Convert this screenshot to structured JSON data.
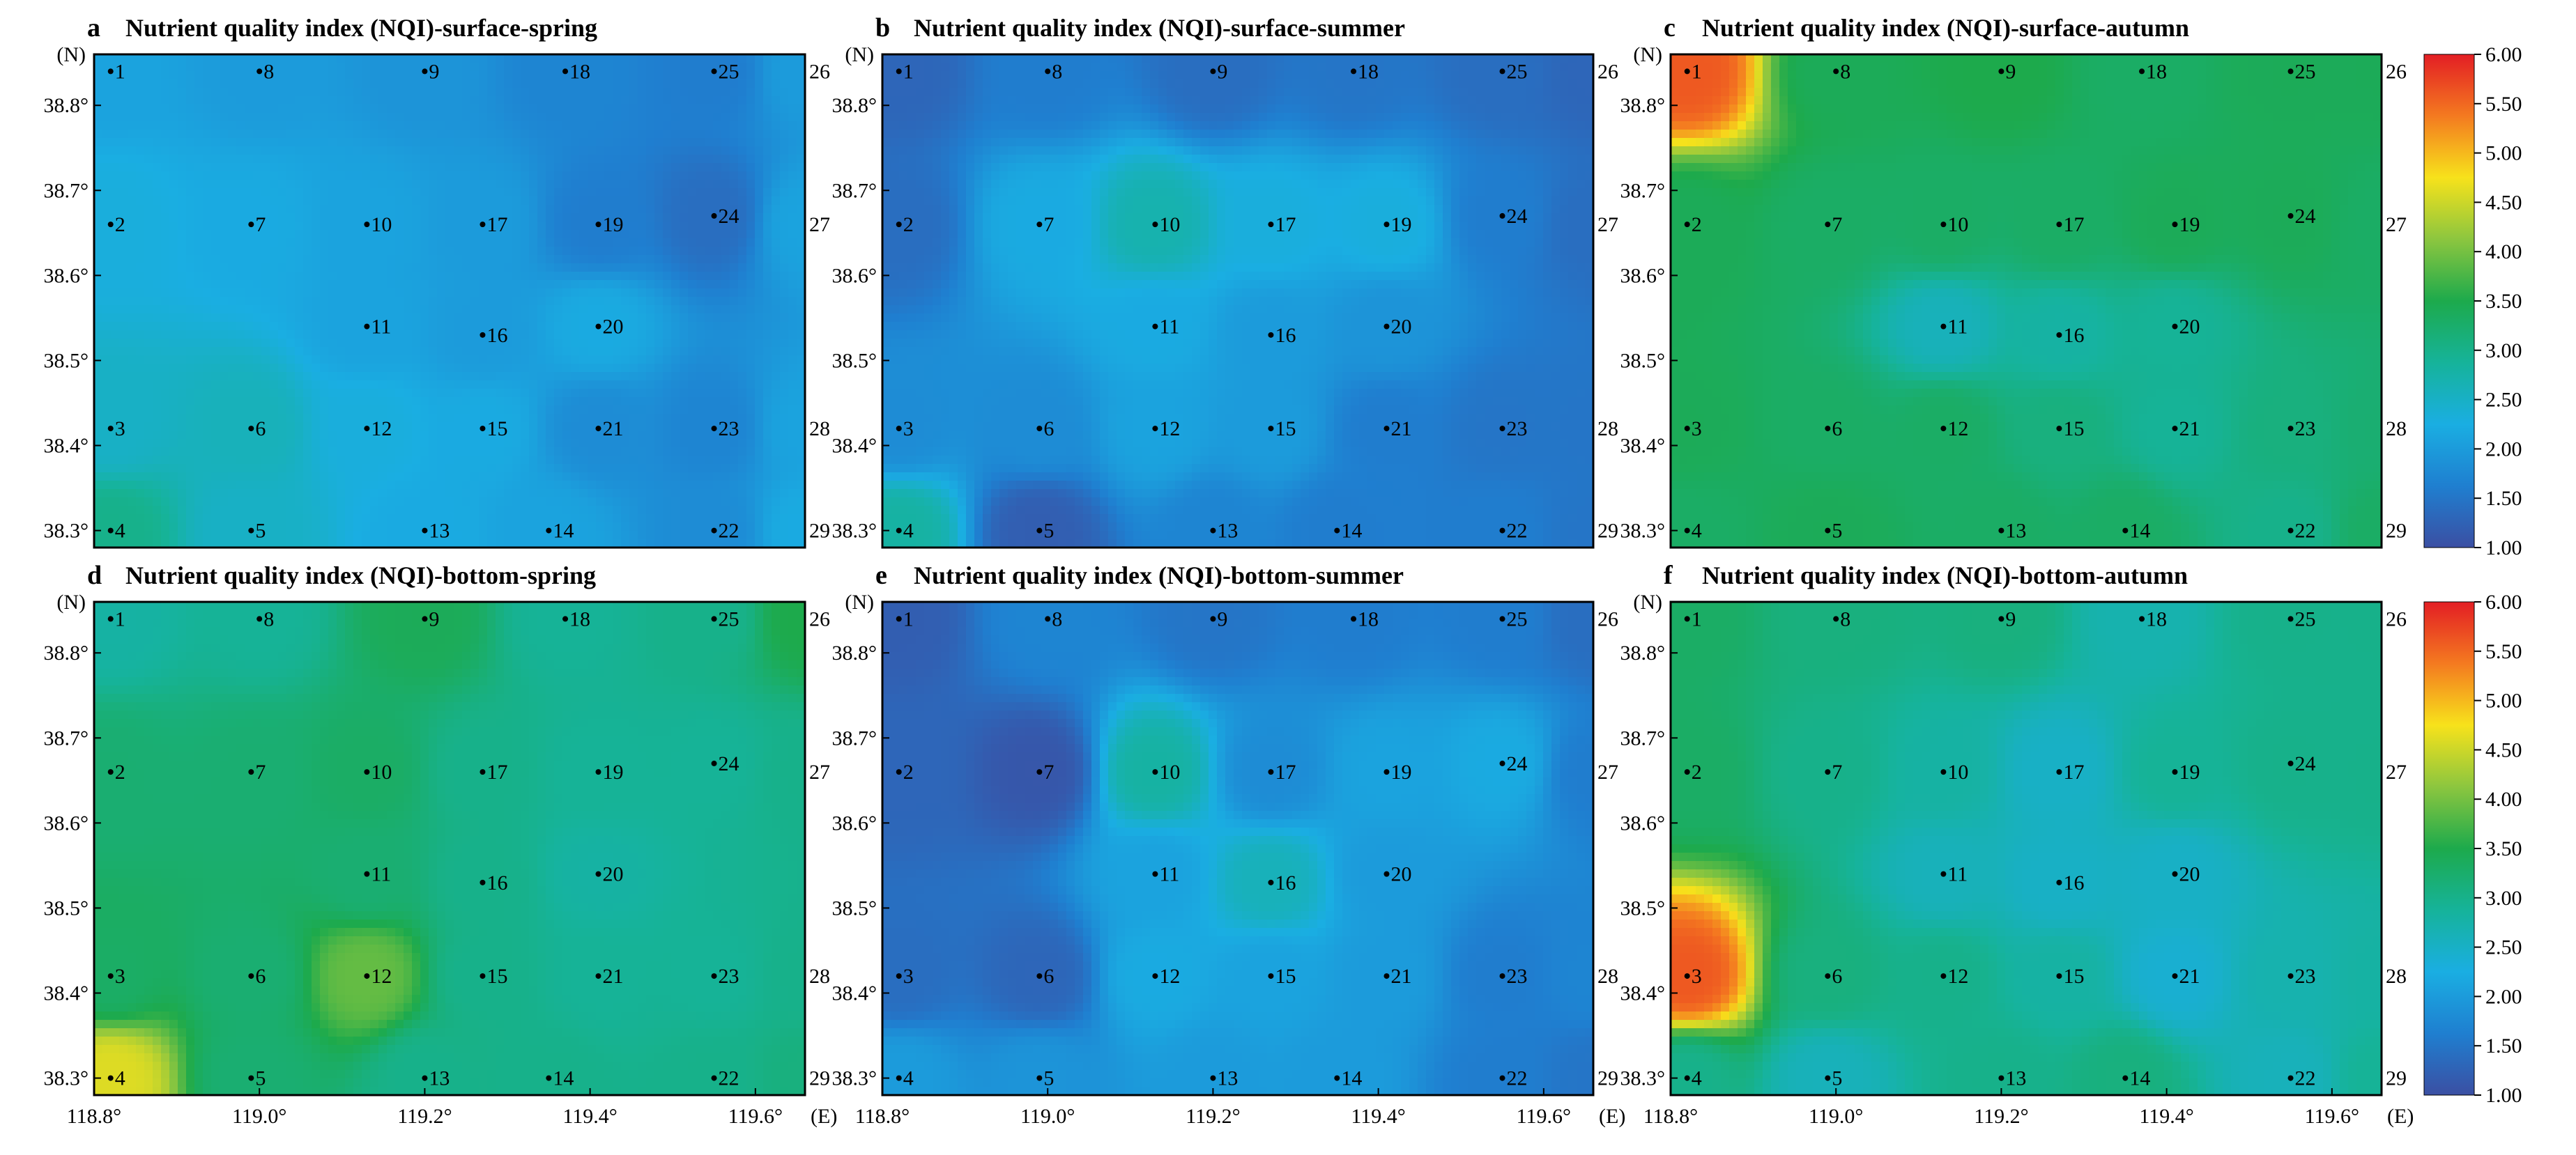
{
  "figure": {
    "lat_unit": "(N)",
    "lon_unit": "(E)",
    "lat_ticks": [
      "38.3°",
      "38.4°",
      "38.5°",
      "38.6°",
      "38.7°",
      "38.8°"
    ],
    "lon_ticks": [
      "118.8°",
      "119.0°",
      "119.2°",
      "119.4°",
      "119.6°"
    ],
    "colorbar_ticks": [
      "1.00",
      "1.50",
      "2.00",
      "2.50",
      "3.00",
      "3.50",
      "4.00",
      "4.50",
      "5.00",
      "5.50",
      "6.00"
    ],
    "colors": {
      "c1": "#3b4fa3",
      "c2": "#1f7fd0",
      "c3": "#1aaee2",
      "c4": "#16b39a",
      "c5": "#1daa4c",
      "c6": "#8cc63f",
      "c7": "#f7e21b",
      "c8": "#f47a20",
      "c9": "#e31e24"
    }
  },
  "stations": [
    {
      "id": "1",
      "lon": 118.82,
      "lat": 38.84
    },
    {
      "id": "8",
      "lon": 119.0,
      "lat": 38.84
    },
    {
      "id": "9",
      "lon": 119.2,
      "lat": 38.84
    },
    {
      "id": "18",
      "lon": 119.37,
      "lat": 38.84
    },
    {
      "id": "25",
      "lon": 119.55,
      "lat": 38.84
    },
    {
      "id": "26",
      "lon": 119.66,
      "lat": 38.84
    },
    {
      "id": "2",
      "lon": 118.82,
      "lat": 38.66
    },
    {
      "id": "7",
      "lon": 118.99,
      "lat": 38.66
    },
    {
      "id": "10",
      "lon": 119.13,
      "lat": 38.66
    },
    {
      "id": "17",
      "lon": 119.27,
      "lat": 38.66
    },
    {
      "id": "19",
      "lon": 119.41,
      "lat": 38.66
    },
    {
      "id": "24",
      "lon": 119.55,
      "lat": 38.67
    },
    {
      "id": "27",
      "lon": 119.66,
      "lat": 38.66
    },
    {
      "id": "11",
      "lon": 119.13,
      "lat": 38.54
    },
    {
      "id": "16",
      "lon": 119.27,
      "lat": 38.53
    },
    {
      "id": "20",
      "lon": 119.41,
      "lat": 38.54
    },
    {
      "id": "3",
      "lon": 118.82,
      "lat": 38.42
    },
    {
      "id": "6",
      "lon": 118.99,
      "lat": 38.42
    },
    {
      "id": "12",
      "lon": 119.13,
      "lat": 38.42
    },
    {
      "id": "15",
      "lon": 119.27,
      "lat": 38.42
    },
    {
      "id": "21",
      "lon": 119.41,
      "lat": 38.42
    },
    {
      "id": "23",
      "lon": 119.55,
      "lat": 38.42
    },
    {
      "id": "28",
      "lon": 119.66,
      "lat": 38.42
    },
    {
      "id": "4",
      "lon": 118.82,
      "lat": 38.3
    },
    {
      "id": "5",
      "lon": 118.99,
      "lat": 38.3
    },
    {
      "id": "13",
      "lon": 119.2,
      "lat": 38.3
    },
    {
      "id": "14",
      "lon": 119.35,
      "lat": 38.3
    },
    {
      "id": "22",
      "lon": 119.55,
      "lat": 38.3
    },
    {
      "id": "29",
      "lon": 119.66,
      "lat": 38.3
    }
  ],
  "chart_data": [
    {
      "type": "heatmap",
      "panel": "a",
      "title": "Nutrient quality index (NQI)-surface-spring",
      "xlabel": "",
      "ylabel": "",
      "xlim": [
        118.8,
        119.66
      ],
      "ylim": [
        38.28,
        38.86
      ],
      "colorbar": {
        "min": 1.0,
        "max": 6.0
      },
      "values": {
        "1": 2.1,
        "2": 2.3,
        "3": 2.5,
        "4": 3.0,
        "5": 2.5,
        "6": 2.6,
        "7": 2.2,
        "8": 2.0,
        "9": 1.9,
        "10": 2.1,
        "11": 2.1,
        "12": 2.3,
        "13": 2.2,
        "14": 2.1,
        "15": 2.2,
        "16": 2.0,
        "17": 2.0,
        "18": 1.7,
        "19": 1.6,
        "20": 2.2,
        "21": 1.8,
        "22": 1.8,
        "23": 1.7,
        "24": 1.4,
        "25": 1.6,
        "26": 2.0,
        "27": 2.1,
        "28": 2.1,
        "29": 2.2
      }
    },
    {
      "type": "heatmap",
      "panel": "b",
      "title": "Nutrient quality index (NQI)-surface-summer",
      "xlabel": "",
      "ylabel": "",
      "xlim": [
        118.8,
        119.66
      ],
      "ylim": [
        38.28,
        38.86
      ],
      "colorbar": {
        "min": 1.0,
        "max": 6.0
      },
      "values": {
        "1": 1.3,
        "2": 1.4,
        "3": 1.8,
        "4": 2.8,
        "5": 1.2,
        "6": 1.8,
        "7": 2.2,
        "8": 1.6,
        "9": 1.4,
        "10": 2.7,
        "11": 2.2,
        "12": 2.1,
        "13": 1.7,
        "14": 1.6,
        "15": 2.0,
        "16": 2.0,
        "17": 2.3,
        "18": 1.5,
        "19": 2.3,
        "20": 1.9,
        "21": 1.6,
        "22": 1.6,
        "23": 1.5,
        "24": 1.6,
        "25": 1.4,
        "26": 1.3,
        "27": 1.4,
        "28": 1.5,
        "29": 1.5
      }
    },
    {
      "type": "heatmap",
      "panel": "c",
      "title": "Nutrient quality index (NQI)-surface-autumn",
      "xlabel": "",
      "ylabel": "",
      "xlim": [
        118.8,
        119.66
      ],
      "ylim": [
        38.28,
        38.86
      ],
      "colorbar": {
        "min": 1.0,
        "max": 6.0
      },
      "values": {
        "1": 5.6,
        "2": 3.4,
        "3": 3.4,
        "4": 3.3,
        "5": 3.4,
        "6": 3.3,
        "7": 3.3,
        "8": 3.4,
        "9": 3.5,
        "10": 3.3,
        "11": 2.6,
        "12": 3.3,
        "13": 3.3,
        "14": 3.3,
        "15": 3.1,
        "16": 2.8,
        "17": 3.3,
        "18": 3.3,
        "19": 3.4,
        "20": 2.9,
        "21": 2.9,
        "22": 3.0,
        "23": 3.1,
        "24": 3.4,
        "25": 3.4,
        "26": 3.4,
        "27": 3.3,
        "28": 3.2,
        "29": 3.3
      }
    },
    {
      "type": "heatmap",
      "panel": "d",
      "title": "Nutrient quality index (NQI)-bottom-spring",
      "xlabel": "",
      "ylabel": "",
      "xlim": [
        118.8,
        119.66
      ],
      "ylim": [
        38.28,
        38.86
      ],
      "colorbar": {
        "min": 1.0,
        "max": 6.0
      },
      "values": {
        "1": 2.8,
        "2": 3.2,
        "3": 3.3,
        "4": 4.6,
        "5": 3.2,
        "6": 3.2,
        "7": 3.2,
        "8": 2.9,
        "9": 3.4,
        "10": 3.3,
        "11": 3.2,
        "12": 3.9,
        "13": 3.0,
        "14": 3.0,
        "15": 3.0,
        "16": 3.0,
        "17": 3.0,
        "18": 2.9,
        "19": 2.9,
        "20": 2.8,
        "21": 2.9,
        "22": 3.0,
        "23": 2.9,
        "24": 2.9,
        "25": 3.0,
        "26": 3.5,
        "27": 3.0,
        "28": 3.0,
        "29": 3.1
      }
    },
    {
      "type": "heatmap",
      "panel": "e",
      "title": "Nutrient quality index (NQI)-bottom-summer",
      "xlabel": "",
      "ylabel": "",
      "xlim": [
        118.8,
        119.66
      ],
      "ylim": [
        38.28,
        38.86
      ],
      "colorbar": {
        "min": 1.0,
        "max": 6.0
      },
      "values": {
        "1": 1.2,
        "2": 1.3,
        "3": 1.4,
        "4": 2.0,
        "5": 1.9,
        "6": 1.3,
        "7": 1.1,
        "8": 1.7,
        "9": 1.5,
        "10": 2.8,
        "11": 2.1,
        "12": 2.2,
        "13": 2.0,
        "14": 2.0,
        "15": 2.1,
        "16": 2.6,
        "17": 1.8,
        "18": 1.6,
        "19": 2.1,
        "20": 2.0,
        "21": 2.0,
        "22": 1.6,
        "23": 1.6,
        "24": 2.2,
        "25": 1.6,
        "26": 1.4,
        "27": 1.6,
        "28": 1.7,
        "29": 1.5
      }
    },
    {
      "type": "heatmap",
      "panel": "f",
      "title": "Nutrient quality index (NQI)-bottom-autumn",
      "xlabel": "",
      "ylabel": "",
      "xlim": [
        118.8,
        119.66
      ],
      "ylim": [
        38.28,
        38.86
      ],
      "colorbar": {
        "min": 1.0,
        "max": 6.0
      },
      "values": {
        "1": 3.3,
        "2": 3.3,
        "3": 5.6,
        "4": 3.0,
        "5": 2.6,
        "6": 3.1,
        "7": 3.0,
        "8": 3.1,
        "9": 3.1,
        "10": 2.8,
        "11": 2.6,
        "12": 3.0,
        "13": 3.0,
        "14": 3.1,
        "15": 2.8,
        "16": 2.5,
        "17": 2.5,
        "18": 2.7,
        "19": 2.9,
        "20": 2.5,
        "21": 2.4,
        "22": 2.6,
        "23": 2.7,
        "24": 3.0,
        "25": 3.0,
        "26": 3.0,
        "27": 3.0,
        "28": 2.8,
        "29": 2.9
      }
    }
  ]
}
